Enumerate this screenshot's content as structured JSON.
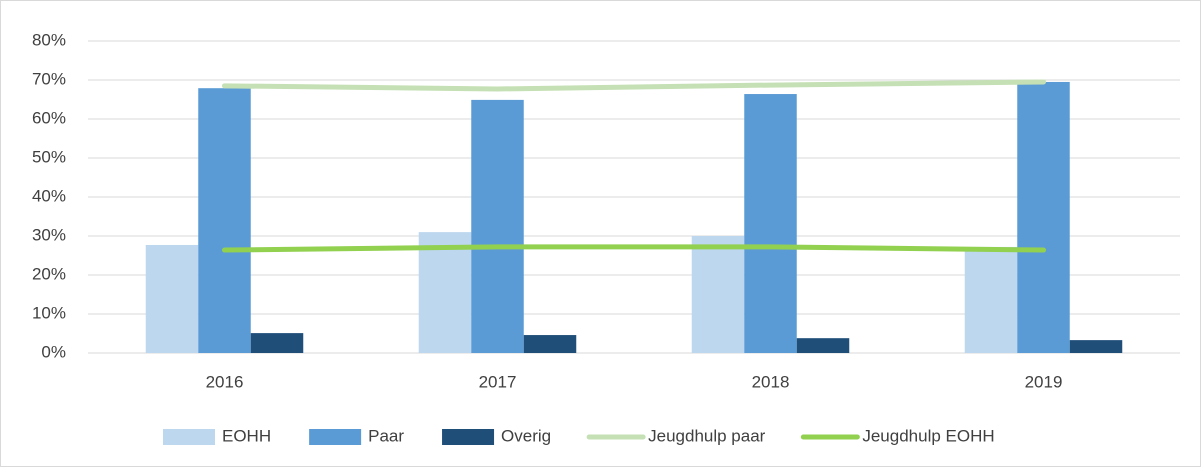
{
  "chart_data": {
    "type": "bar",
    "categories": [
      "2016",
      "2017",
      "2018",
      "2019"
    ],
    "series": [
      {
        "name": "EOHH",
        "type": "bar",
        "color": "#bdd7ee",
        "values": [
          27.7,
          31.0,
          30.0,
          27.2
        ]
      },
      {
        "name": "Paar",
        "type": "bar",
        "color": "#5b9bd5",
        "values": [
          67.9,
          64.9,
          66.4,
          69.5
        ]
      },
      {
        "name": "Overig",
        "type": "bar",
        "color": "#1f4e79",
        "values": [
          5.1,
          4.6,
          3.8,
          3.3
        ]
      },
      {
        "name": "Jeugdhulp paar",
        "type": "line",
        "color": "#c5e0b4",
        "values": [
          68.5,
          67.7,
          68.7,
          69.5
        ]
      },
      {
        "name": "Jeugdhulp EOHH",
        "type": "line",
        "color": "#92d050",
        "values": [
          26.4,
          27.2,
          27.2,
          26.4
        ]
      }
    ],
    "ylim": [
      0,
      80
    ],
    "yticks": [
      {
        "value": 0,
        "label": "0%"
      },
      {
        "value": 10,
        "label": "10%"
      },
      {
        "value": 20,
        "label": "20%"
      },
      {
        "value": 30,
        "label": "30%"
      },
      {
        "value": 40,
        "label": "40%"
      },
      {
        "value": 50,
        "label": "50%"
      },
      {
        "value": 60,
        "label": "60%"
      },
      {
        "value": 70,
        "label": "70%"
      },
      {
        "value": 80,
        "label": "80%"
      }
    ],
    "grid": true,
    "legend": "bottom"
  }
}
